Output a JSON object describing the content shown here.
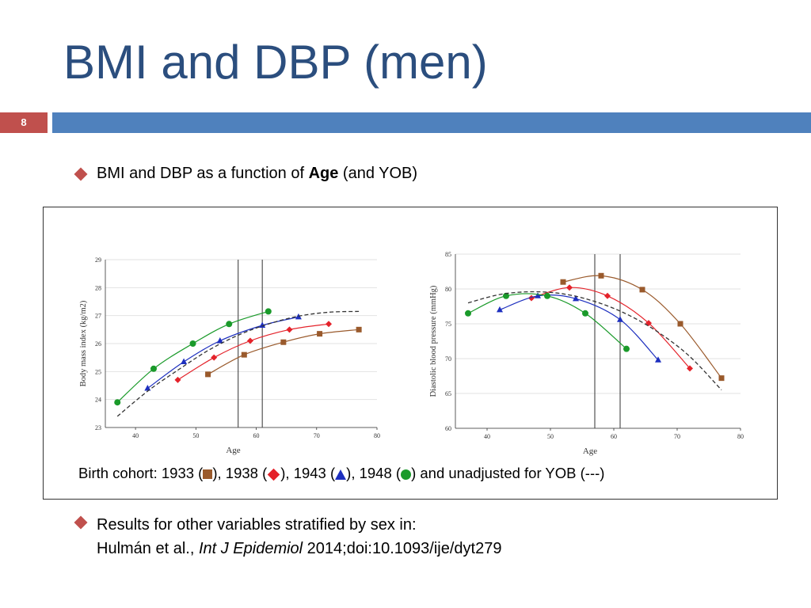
{
  "slide": {
    "title": "BMI and DBP (men)",
    "number": "8",
    "bullet1": {
      "prefix": "BMI and DBP as a function of ",
      "bold": "Age",
      "suffix": " (and YOB)"
    },
    "bullet2": {
      "line1": "Results for other variables stratified by sex in:",
      "authors": "Hulmán et al., ",
      "journal": "Int J Epidemiol",
      "ref": " 2014;doi:10.1093/ije/dyt279"
    },
    "caption": {
      "p1": "Birth cohort: 1933 (",
      "p2": "), 1938 (",
      "p3": "), 1943 (",
      "p4": "), 1948 (",
      "p5": ") and unadjusted for YOB (---)"
    },
    "colors": {
      "c1933": "#9a5a2c",
      "c1938": "#e4222a",
      "c1943": "#1d2fbf",
      "c1948": "#1a9a2a",
      "title": "#2b4e7e",
      "accent": "#c0504d",
      "bar": "#4f81bd"
    }
  },
  "chart_data": [
    {
      "type": "line",
      "xlabel": "Age",
      "ylabel": "Body mass index (kg/m2)",
      "xlim": [
        35,
        80
      ],
      "ylim": [
        23,
        29
      ],
      "xticks": [
        "40",
        "50",
        "60",
        "70",
        "80"
      ],
      "yticks": [
        "23",
        "24",
        "25",
        "26",
        "27",
        "28",
        "29"
      ],
      "vlines": [
        57,
        61
      ],
      "series": [
        {
          "cohort": "1933",
          "marker": "square",
          "color": "#9a5a2c",
          "x": [
            52,
            58,
            64.5,
            70.5,
            77
          ],
          "y": [
            24.9,
            25.6,
            26.05,
            26.35,
            26.5
          ]
        },
        {
          "cohort": "1938",
          "marker": "diamond",
          "color": "#e4222a",
          "x": [
            47,
            53,
            59,
            65.5,
            72
          ],
          "y": [
            24.7,
            25.5,
            26.1,
            26.5,
            26.7
          ]
        },
        {
          "cohort": "1943",
          "marker": "triangle",
          "color": "#1d2fbf",
          "x": [
            42,
            48,
            54,
            61,
            67
          ],
          "y": [
            24.4,
            25.35,
            26.1,
            26.65,
            26.95
          ]
        },
        {
          "cohort": "1948",
          "marker": "circle",
          "color": "#1a9a2a",
          "x": [
            37,
            43,
            49.5,
            55.5,
            62
          ],
          "y": [
            23.9,
            25.1,
            26.0,
            26.7,
            27.15
          ]
        },
        {
          "cohort": "unadjusted",
          "marker": "none",
          "dashed": true,
          "color": "#333333",
          "x": [
            37,
            42,
            47,
            52,
            57,
            62,
            67,
            72,
            77
          ],
          "y": [
            23.4,
            24.3,
            25.05,
            25.75,
            26.3,
            26.7,
            26.98,
            27.12,
            27.15
          ]
        }
      ]
    },
    {
      "type": "line",
      "xlabel": "Age",
      "ylabel": "Diastolic blood pressure (mmHg)",
      "xlim": [
        35,
        80
      ],
      "ylim": [
        60,
        85
      ],
      "xticks": [
        "40",
        "50",
        "60",
        "70",
        "80"
      ],
      "yticks": [
        "60",
        "65",
        "70",
        "75",
        "80",
        "85"
      ],
      "vlines": [
        57,
        61
      ],
      "series": [
        {
          "cohort": "1933",
          "marker": "square",
          "color": "#9a5a2c",
          "x": [
            52,
            58,
            64.5,
            70.5,
            77
          ],
          "y": [
            81.0,
            81.9,
            79.9,
            75.0,
            67.2
          ]
        },
        {
          "cohort": "1938",
          "marker": "diamond",
          "color": "#e4222a",
          "x": [
            47,
            53,
            59,
            65.5,
            72
          ],
          "y": [
            78.7,
            80.2,
            79.0,
            75.1,
            68.6
          ]
        },
        {
          "cohort": "1943",
          "marker": "triangle",
          "color": "#1d2fbf",
          "x": [
            42,
            48,
            54,
            61,
            67
          ],
          "y": [
            77.0,
            79.0,
            78.6,
            75.6,
            69.8
          ]
        },
        {
          "cohort": "1948",
          "marker": "circle",
          "color": "#1a9a2a",
          "x": [
            37,
            43,
            49.5,
            55.5,
            62
          ],
          "y": [
            76.5,
            79.0,
            79.0,
            76.5,
            71.4
          ]
        },
        {
          "cohort": "unadjusted",
          "marker": "none",
          "dashed": true,
          "color": "#333333",
          "x": [
            37,
            42,
            47,
            52,
            57,
            62,
            67,
            72,
            77
          ],
          "y": [
            78.0,
            79.2,
            79.6,
            79.3,
            78.2,
            76.4,
            73.8,
            70.3,
            65.5
          ]
        }
      ]
    }
  ]
}
